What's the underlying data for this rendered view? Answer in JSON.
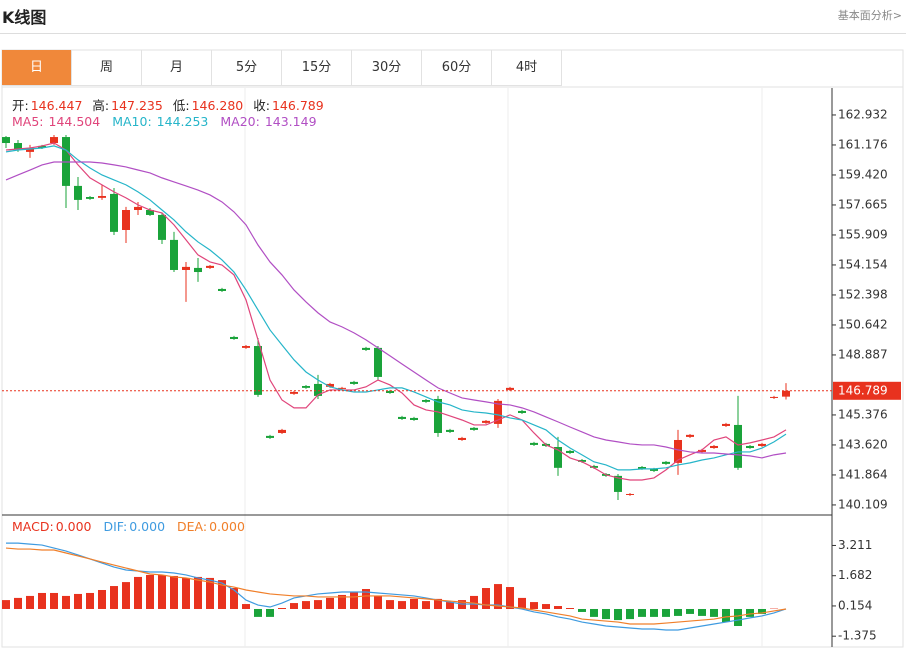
{
  "chart_data": {
    "type": "candlestick",
    "title": "K线图",
    "link": "基本面分析>",
    "tabs": [
      "日",
      "周",
      "月",
      "5分",
      "15分",
      "30分",
      "60分",
      "4时"
    ],
    "active_tab": 0,
    "up_color": "#e8321e",
    "down_color": "#1aa33a",
    "quote": [
      {
        "label": "开:",
        "value": 146.447
      },
      {
        "label": "高:",
        "value": 147.235
      },
      {
        "label": "低:",
        "value": 146.28,
        "value_label": "146.280"
      },
      {
        "label": "收:",
        "value": 146.789
      }
    ],
    "ylim": [
      139.52,
      164.51
    ],
    "yticks": [
      162.932,
      161.176,
      159.42,
      {
        "value": 159.42,
        "label": "159.420"
      },
      157.665,
      155.909,
      154.154,
      152.398,
      150.642,
      148.887,
      145.376,
      {
        "value": 143.62,
        "label": "143.620"
      },
      141.864,
      140.109
    ],
    "candles": {
      "open": [
        161.64,
        161.29,
        160.77,
        161.12,
        161.29,
        161.64,
        158.78,
        158.13,
        158.08,
        158.31,
        156.2,
        157.37,
        157.37,
        157.08,
        155.62,
        153.86,
        153.98,
        153.98,
        152.75,
        149.94,
        149.3,
        149.41,
        144.15,
        144.32,
        146.61,
        147.07,
        147.19,
        147.02,
        146.9,
        147.31,
        149.3,
        149.3,
        146.78,
        145.26,
        145.2,
        146.25,
        146.31,
        144.5,
        143.91,
        144.62,
        144.91,
        144.85,
        146.84,
        145.61,
        143.74,
        143.68,
        143.5,
        143.27,
        142.74,
        142.39,
        141.92,
        141.81,
        140.7,
        142.33,
        142.22,
        142.63,
        142.57,
        144.09,
        143.21,
        143.44,
        144.73,
        144.79,
        143.56,
        143.56,
        146.37,
        146.447
      ],
      "high": [
        161.7,
        161.47,
        161.18,
        161.18,
        161.76,
        161.76,
        159.3,
        158.19,
        158.84,
        158.66,
        157.55,
        157.84,
        157.49,
        157.2,
        156.09,
        154.33,
        154.56,
        154.15,
        152.81,
        150.0,
        149.47,
        149.88,
        144.21,
        144.56,
        146.78,
        147.13,
        147.72,
        147.25,
        147.02,
        147.37,
        149.36,
        149.41,
        146.84,
        145.32,
        145.26,
        146.31,
        146.49,
        144.56,
        144.09,
        144.67,
        145.08,
        146.31,
        147.02,
        145.67,
        143.8,
        143.74,
        144.09,
        143.33,
        142.8,
        142.45,
        141.98,
        141.92,
        140.81,
        142.39,
        142.28,
        142.68,
        144.5,
        144.26,
        143.39,
        143.62,
        144.91,
        146.49,
        143.62,
        143.74,
        146.49,
        147.235
      ],
      "low": [
        161.0,
        160.77,
        160.42,
        160.94,
        161.18,
        157.49,
        157.37,
        157.96,
        157.96,
        155.91,
        155.44,
        157.08,
        157.02,
        155.38,
        153.74,
        151.99,
        153.16,
        153.92,
        152.57,
        149.77,
        149.24,
        146.43,
        143.97,
        144.26,
        146.55,
        146.9,
        146.31,
        146.96,
        146.84,
        147.13,
        149.12,
        147.42,
        146.61,
        145.08,
        145.03,
        146.08,
        144.09,
        144.32,
        143.86,
        144.44,
        144.85,
        144.62,
        146.78,
        145.43,
        143.56,
        143.5,
        141.81,
        143.09,
        142.57,
        142.22,
        141.75,
        140.4,
        140.64,
        142.16,
        142.04,
        142.45,
        141.87,
        144.03,
        143.15,
        143.39,
        144.67,
        142.16,
        143.39,
        143.5,
        146.31,
        146.28
      ],
      "close": [
        161.29,
        160.94,
        161.0,
        161.0,
        161.64,
        158.78,
        157.96,
        158.02,
        158.19,
        156.09,
        157.37,
        157.55,
        157.08,
        155.62,
        153.86,
        154.04,
        153.74,
        154.1,
        152.63,
        149.82,
        149.41,
        146.55,
        144.03,
        144.5,
        146.72,
        146.96,
        146.49,
        147.19,
        146.96,
        147.19,
        149.18,
        147.6,
        146.66,
        145.14,
        145.08,
        146.14,
        144.32,
        144.38,
        144.03,
        144.5,
        145.03,
        146.2,
        146.96,
        145.49,
        143.62,
        143.56,
        142.28,
        143.15,
        142.63,
        142.28,
        141.81,
        140.87,
        140.75,
        142.22,
        142.1,
        142.51,
        143.91,
        144.21,
        143.33,
        143.56,
        144.85,
        142.28,
        143.44,
        143.68,
        146.43,
        146.789
      ]
    },
    "ma": [
      {
        "label": "MA5:",
        "value": 144.504,
        "color": "#e0457b",
        "values": [
          160.88,
          160.94,
          161.0,
          161.12,
          161.29,
          160.88,
          160.01,
          159.25,
          158.84,
          158.43,
          158.08,
          157.67,
          157.37,
          157.2,
          156.5,
          155.62,
          154.74,
          154.33,
          154.15,
          153.57,
          152.11,
          149.77,
          147.42,
          146.25,
          145.79,
          145.79,
          146.55,
          146.84,
          146.84,
          146.84,
          147.02,
          147.42,
          147.13,
          146.66,
          145.96,
          145.67,
          145.55,
          145.32,
          145.08,
          144.79,
          144.79,
          145.08,
          145.38,
          145.08,
          144.32,
          143.62,
          143.33,
          142.86,
          142.63,
          142.28,
          141.87,
          141.69,
          141.57,
          141.57,
          141.69,
          142.16,
          142.74,
          143.04,
          143.33,
          143.91,
          144.09,
          143.62,
          143.74,
          143.91,
          144.09,
          144.5
        ]
      },
      {
        "label": "MA10:",
        "value": 144.253,
        "color": "#26b5c9",
        "values": [
          160.77,
          160.88,
          160.94,
          161.0,
          161.12,
          160.88,
          160.3,
          159.83,
          159.42,
          159.13,
          158.84,
          158.43,
          157.96,
          157.37,
          156.79,
          156.09,
          155.5,
          155.03,
          154.45,
          153.74,
          152.69,
          151.52,
          150.35,
          149.47,
          148.6,
          147.89,
          147.42,
          147.02,
          146.84,
          146.72,
          146.72,
          146.84,
          146.96,
          146.96,
          146.72,
          146.43,
          146.14,
          145.96,
          145.67,
          145.55,
          145.49,
          145.38,
          145.2,
          145.08,
          144.79,
          144.5,
          143.91,
          143.44,
          143.04,
          142.63,
          142.45,
          142.16,
          142.16,
          142.22,
          142.22,
          142.28,
          142.45,
          142.57,
          142.74,
          142.86,
          143.04,
          143.21,
          143.21,
          143.44,
          143.8,
          144.25
        ]
      },
      {
        "label": "MA20:",
        "value": 143.149,
        "color": "#b14fc4",
        "values": [
          159.13,
          159.42,
          159.71,
          160.01,
          160.18,
          160.18,
          160.18,
          160.18,
          160.12,
          160.01,
          159.89,
          159.71,
          159.54,
          159.25,
          159.01,
          158.78,
          158.54,
          158.25,
          157.84,
          157.26,
          156.5,
          155.32,
          154.33,
          153.57,
          152.69,
          151.99,
          151.35,
          150.82,
          150.53,
          150.18,
          149.77,
          149.3,
          148.83,
          148.36,
          147.89,
          147.42,
          146.96,
          146.66,
          146.37,
          146.25,
          146.14,
          146.02,
          145.96,
          145.79,
          145.55,
          145.26,
          144.97,
          144.67,
          144.38,
          144.09,
          143.91,
          143.8,
          143.68,
          143.62,
          143.62,
          143.5,
          143.33,
          143.21,
          143.15,
          143.15,
          143.09,
          143.04,
          142.98,
          142.86,
          143.04,
          143.15
        ]
      }
    ],
    "macd": {
      "ylim": [
        -1.82,
        4.7
      ],
      "yticks": [
        3.211,
        1.682,
        0.154,
        -1.375
      ],
      "legend": [
        {
          "label": "MACD:",
          "value": 0,
          "value_label": "0.000",
          "color": "#e8321e"
        },
        {
          "label": "DIF:",
          "value": 0,
          "value_label": "0.000",
          "color": "#3f9be0"
        },
        {
          "label": "DEA:",
          "value": 0,
          "value_label": "0.000",
          "color": "#f07f2a"
        }
      ],
      "bars": [
        0.45,
        0.56,
        0.66,
        0.81,
        0.81,
        0.66,
        0.76,
        0.81,
        0.96,
        1.16,
        1.36,
        1.62,
        1.72,
        1.72,
        1.67,
        1.57,
        1.62,
        1.57,
        1.46,
        1.06,
        0.25,
        -0.4,
        -0.4,
        0.05,
        0.3,
        0.4,
        0.45,
        0.56,
        0.71,
        0.86,
        1.01,
        0.66,
        0.45,
        0.4,
        0.51,
        0.4,
        0.51,
        0.35,
        0.45,
        0.66,
        1.06,
        1.26,
        1.11,
        0.56,
        0.35,
        0.25,
        0.15,
        0.05,
        -0.15,
        -0.4,
        -0.51,
        -0.56,
        -0.51,
        -0.4,
        -0.4,
        -0.4,
        -0.35,
        -0.25,
        -0.35,
        -0.4,
        -0.66,
        -0.86,
        -0.4,
        -0.25,
        0.02,
        0
      ],
      "dif": [
        3.33,
        3.33,
        3.28,
        3.23,
        3.08,
        2.93,
        2.73,
        2.53,
        2.32,
        2.12,
        1.97,
        1.92,
        1.87,
        1.87,
        1.82,
        1.72,
        1.57,
        1.46,
        1.31,
        0.96,
        0.45,
        0.2,
        0.1,
        0.3,
        0.56,
        0.66,
        0.76,
        0.81,
        0.86,
        0.86,
        0.86,
        0.81,
        0.76,
        0.71,
        0.66,
        0.56,
        0.45,
        0.35,
        0.25,
        0.25,
        0.2,
        0.2,
        0.1,
        0,
        -0.15,
        -0.25,
        -0.4,
        -0.51,
        -0.66,
        -0.76,
        -0.86,
        -0.91,
        -0.96,
        -1.01,
        -1.01,
        -1.06,
        -1.06,
        -0.96,
        -0.86,
        -0.76,
        -0.66,
        -0.56,
        -0.45,
        -0.35,
        -0.2,
        0
      ],
      "dea": [
        3.08,
        3.03,
        3.03,
        2.98,
        2.98,
        2.83,
        2.68,
        2.53,
        2.37,
        2.22,
        2.07,
        1.92,
        1.77,
        1.72,
        1.62,
        1.57,
        1.46,
        1.36,
        1.21,
        1.11,
        0.96,
        0.86,
        0.76,
        0.71,
        0.66,
        0.66,
        0.61,
        0.61,
        0.61,
        0.61,
        0.66,
        0.66,
        0.66,
        0.61,
        0.56,
        0.51,
        0.45,
        0.4,
        0.35,
        0.3,
        0.2,
        0.15,
        0.1,
        0.05,
        -0.05,
        -0.15,
        -0.25,
        -0.35,
        -0.51,
        -0.56,
        -0.61,
        -0.66,
        -0.76,
        -0.76,
        -0.76,
        -0.71,
        -0.66,
        -0.61,
        -0.56,
        -0.51,
        -0.4,
        -0.35,
        -0.25,
        -0.2,
        -0.1,
        0
      ]
    }
  }
}
